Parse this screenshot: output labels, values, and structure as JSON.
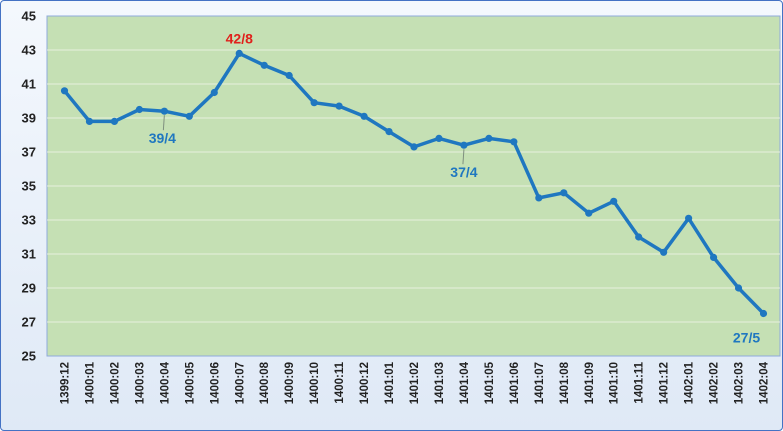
{
  "chart_data": {
    "type": "line",
    "title": "",
    "xlabel": "",
    "ylabel": "",
    "ylim": [
      25,
      45
    ],
    "yticks": [
      25,
      27,
      29,
      31,
      33,
      35,
      37,
      39,
      41,
      43,
      45
    ],
    "grid": true,
    "legend": "none",
    "colors": {
      "plot_background": "#c5e0b4",
      "line": "#1f77c0",
      "max_label": "#e0201b",
      "label": "#1f77c0",
      "frame": "#4472c4"
    },
    "categories": [
      "1399:12",
      "1400:01",
      "1400:02",
      "1400:03",
      "1400:04",
      "1400:05",
      "1400:06",
      "1400:07",
      "1400:08",
      "1400:09",
      "1400:10",
      "1400:11",
      "1400:12",
      "1401:01",
      "1401:02",
      "1401:03",
      "1401:04",
      "1401:05",
      "1401:06",
      "1401:07",
      "1401:08",
      "1401:09",
      "1401:10",
      "1401:11",
      "1401:12",
      "1402:01",
      "1402:02",
      "1402:03",
      "1402:04"
    ],
    "series": [
      {
        "values": [
          40.6,
          38.8,
          38.8,
          39.5,
          39.4,
          39.1,
          40.5,
          42.8,
          42.1,
          41.5,
          39.9,
          39.7,
          39.1,
          38.2,
          37.3,
          37.8,
          37.4,
          37.8,
          37.6,
          34.3,
          34.6,
          33.4,
          34.1,
          32.0,
          31.1,
          33.1,
          30.8,
          29.0,
          27.5
        ]
      }
    ],
    "annotations": [
      {
        "text": "42/8",
        "index": 7,
        "color": "max_label"
      },
      {
        "text": "39/4",
        "index": 4,
        "color": "label",
        "leader": true
      },
      {
        "text": "37/4",
        "index": 16,
        "color": "label",
        "leader": true
      },
      {
        "text": "27/5",
        "index": 28,
        "color": "label"
      }
    ]
  }
}
